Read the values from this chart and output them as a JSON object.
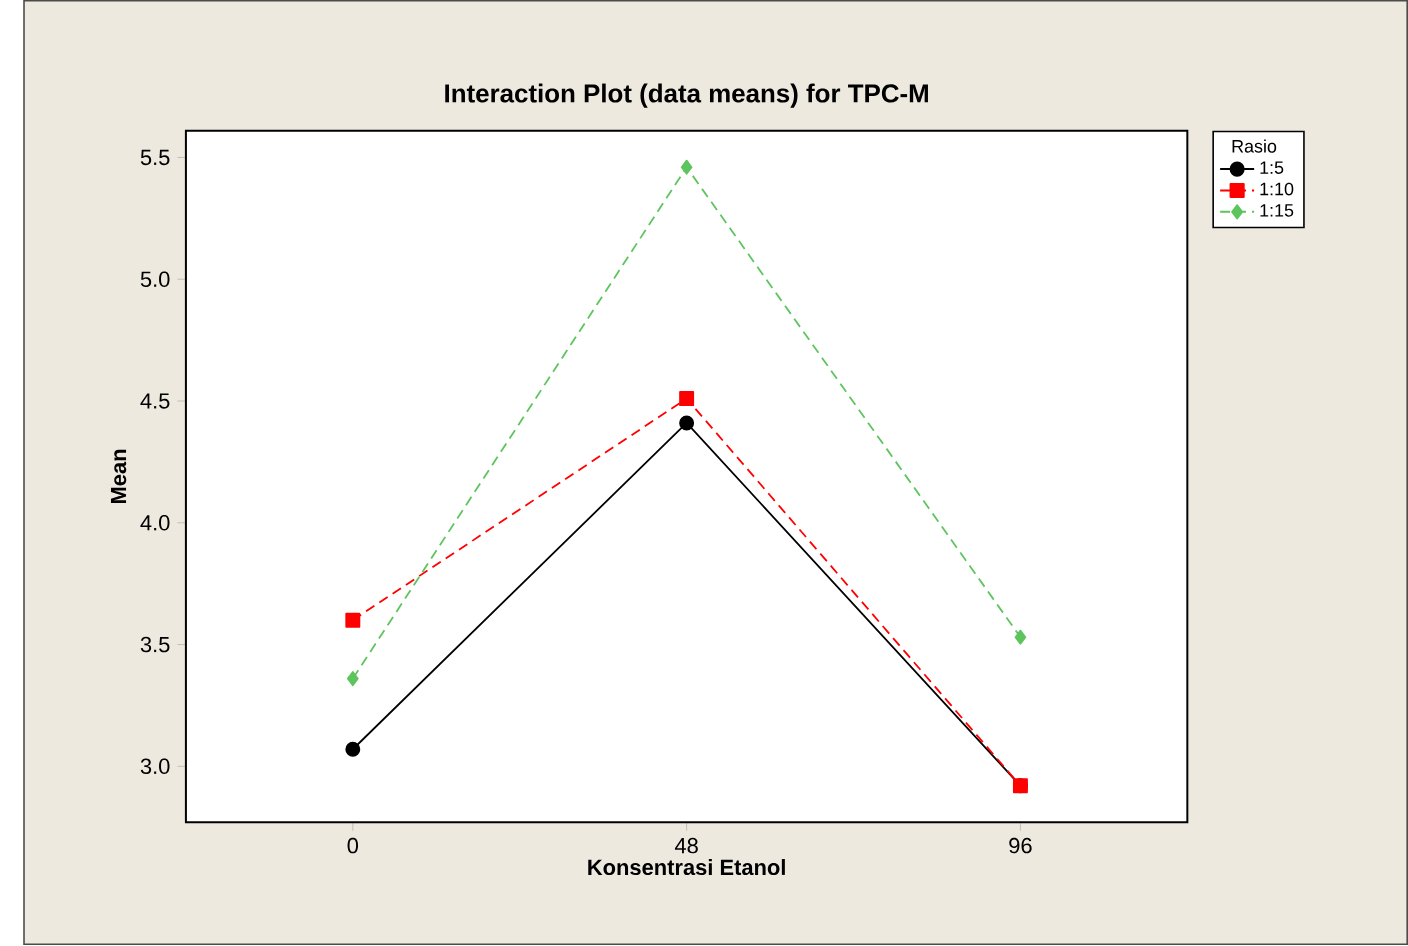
{
  "chart_data": {
    "type": "line",
    "title": "Interaction Plot (data means) for TPC-M",
    "xlabel": "Konsentrasi Etanol",
    "ylabel": "Mean",
    "legend_title": "Rasio",
    "legend": "top right",
    "x": [
      0,
      48,
      96
    ],
    "xlim": [
      -24,
      120
    ],
    "xticks": [
      0,
      48,
      96
    ],
    "ylim": [
      2.77,
      5.61
    ],
    "yticks": [
      {
        "value": 3,
        "label": "3.0"
      },
      {
        "value": 3.5,
        "label": "3.5"
      },
      {
        "value": 4,
        "label": "4.0"
      },
      {
        "value": 4.5,
        "label": "4.5"
      },
      {
        "value": 5,
        "label": "5.0"
      },
      {
        "value": 5.5,
        "label": "5.5"
      }
    ],
    "grid": false,
    "series": [
      {
        "name": "1:5",
        "color": "#000000",
        "marker": "circle",
        "line_style": "solid",
        "values": [
          3.07,
          4.41,
          2.92
        ]
      },
      {
        "name": "1:10",
        "color": "#ff0000",
        "marker": "square",
        "line_style": "dashed",
        "values": [
          3.6,
          4.51,
          2.92
        ]
      },
      {
        "name": "1:15",
        "color": "#5ec45e",
        "marker": "diamond",
        "line_style": "dashed",
        "values": [
          3.36,
          5.46,
          3.53
        ]
      }
    ]
  }
}
